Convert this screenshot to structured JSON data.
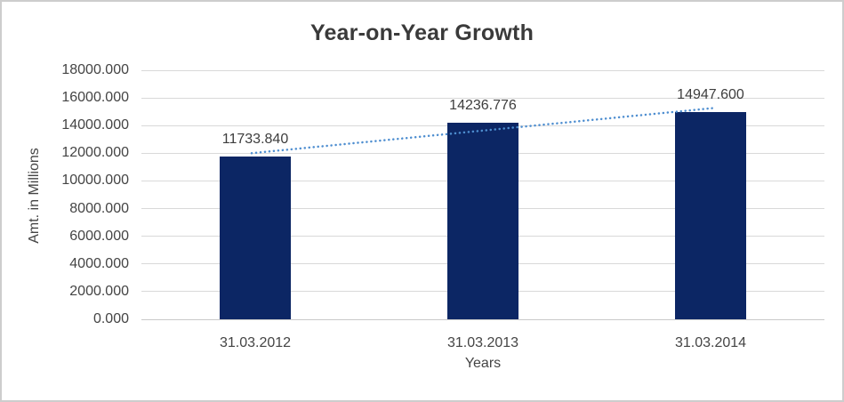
{
  "chart_data": {
    "type": "bar",
    "title": "Year-on-Year Growth",
    "xlabel": "Years",
    "ylabel": "Amt. in Millions",
    "categories": [
      "31.03.2012",
      "31.03.2013",
      "31.03.2014"
    ],
    "values": [
      11733.84,
      14236.776,
      14947.6
    ],
    "value_labels": [
      "11733.840",
      "14236.776",
      "14947.600"
    ],
    "yticks": [
      "18000.000",
      "16000.000",
      "14000.000",
      "12000.000",
      "10000.000",
      "8000.000",
      "6000.000",
      "4000.000",
      "2000.000",
      "0.000"
    ],
    "ylim": [
      0,
      18000
    ],
    "grid": true,
    "legend_position": "none",
    "trendline": {
      "type": "linear",
      "style": "dotted"
    },
    "colors": {
      "bar": "#0c2664",
      "trend": "#4e8ed0",
      "grid": "#d9d9d9",
      "axis": "#c9c9c9",
      "tick_text": "#444444",
      "title_text": "#3a3a3a"
    }
  }
}
